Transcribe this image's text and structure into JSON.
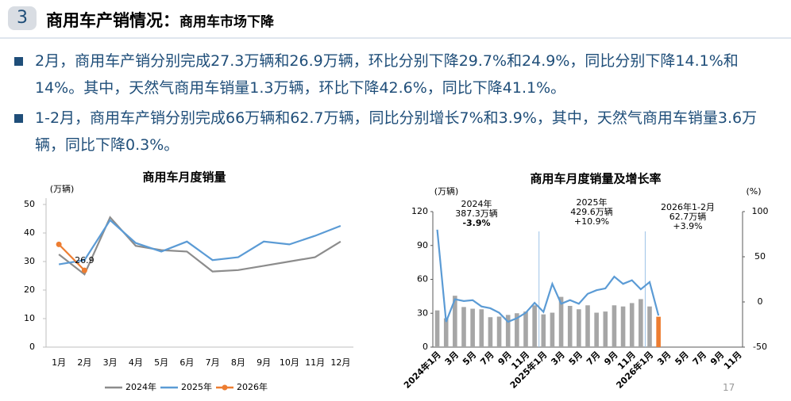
{
  "header": {
    "number": "3",
    "title": "商用车产销情况：",
    "subtitle": "商用车市场下降"
  },
  "bullets": [
    "2月，商用车产销分别完成27.3万辆和26.9万辆，环比分别下降29.7%和24.9%，同比分别下降14.1%和14%。其中，天然气商用车销量1.3万辆，环比下降42.6%，同比下降41.1%。",
    "1-2月，商用车产销分别完成66万辆和62.7万辆，同比分别增长7%和3.9%，其中，天然气商用车销量3.6万辆，同比下降0.3%。"
  ],
  "page_number": "17",
  "chart_data": [
    {
      "type": "line",
      "title": "商用车月度销量",
      "y_label": "(万辆)",
      "categories": [
        "1月",
        "2月",
        "3月",
        "4月",
        "5月",
        "6月",
        "7月",
        "8月",
        "9月",
        "10月",
        "11月",
        "12月"
      ],
      "ylim": [
        0,
        50
      ],
      "yticks": [
        0,
        10,
        20,
        30,
        40,
        50
      ],
      "grid": false,
      "legend": "bottom",
      "series": [
        {
          "name": "2024年",
          "color": "#8c8c8c",
          "values": [
            32.5,
            25.5,
            45.5,
            35.5,
            34,
            33.5,
            26.5,
            27,
            28.5,
            30,
            31.5,
            37
          ]
        },
        {
          "name": "2025年",
          "color": "#5b9bd5",
          "values": [
            29,
            30.5,
            44.5,
            36.5,
            33.5,
            37,
            30.5,
            31.5,
            37,
            36,
            39,
            42.5
          ]
        },
        {
          "name": "2026年",
          "color": "#ed7d31",
          "marker": true,
          "values": [
            36,
            26.9,
            null,
            null,
            null,
            null,
            null,
            null,
            null,
            null,
            null,
            null
          ],
          "value_labels": [
            null,
            "26.9",
            null,
            null,
            null,
            null,
            null,
            null,
            null,
            null,
            null,
            null
          ]
        }
      ]
    },
    {
      "type": "combo",
      "title": "商用车月度销量及增长率",
      "y_label": "(万辆)",
      "y2_label": "(%)",
      "categories": [
        "2024年1月",
        null,
        "3月",
        null,
        "5月",
        null,
        "7月",
        null,
        "9月",
        null,
        "11月",
        null,
        "2025年1月",
        null,
        "3月",
        null,
        "5月",
        null,
        "7月",
        null,
        "9月",
        null,
        "11月",
        null,
        "2026年1月",
        null,
        "3月",
        null,
        "5月",
        null,
        "7月",
        null,
        "9月",
        null,
        "11月"
      ],
      "ylim": [
        0,
        120
      ],
      "yticks": [
        0,
        30,
        60,
        90,
        120
      ],
      "y2lim": [
        -50,
        100
      ],
      "y2ticks": [
        -50,
        0,
        50,
        100
      ],
      "series": [
        {
          "type": "bar",
          "color": "#a6a6a6",
          "values": [
            32.5,
            25.5,
            45.5,
            35.5,
            34,
            33.5,
            26.5,
            27,
            28.5,
            30,
            31.5,
            37,
            29,
            30.5,
            44.5,
            36.5,
            33.5,
            37,
            30.5,
            31.5,
            37,
            36,
            39,
            42.5,
            36,
            null,
            null,
            null,
            null,
            null,
            null,
            null,
            null,
            null,
            null
          ]
        },
        {
          "type": "bar",
          "color": "#ed7d31",
          "values": [
            null,
            null,
            null,
            null,
            null,
            null,
            null,
            null,
            null,
            null,
            null,
            null,
            null,
            null,
            null,
            null,
            null,
            null,
            null,
            null,
            null,
            null,
            null,
            null,
            null,
            26.9,
            null,
            null,
            null,
            null,
            null,
            null,
            null,
            null,
            null
          ]
        },
        {
          "type": "line",
          "axis": "y2",
          "color": "#5b9bd5",
          "values": [
            80,
            -22,
            3,
            1,
            2,
            -5,
            -7,
            -12,
            -22,
            -18,
            -12,
            -1,
            -11,
            20,
            -2,
            2,
            -2,
            9,
            13,
            15,
            28,
            20,
            24,
            14,
            22,
            -15,
            null,
            null,
            null,
            null,
            null,
            null,
            null,
            null,
            null
          ]
        }
      ],
      "annotations": [
        {
          "lines": [
            "2024年",
            "387.3万辆",
            "-3.9%"
          ]
        },
        {
          "lines": [
            "2025年",
            "429.6万辆",
            "+10.9%"
          ]
        },
        {
          "lines": [
            "2026年1-2月",
            "62.7万辆",
            "+3.9%"
          ]
        }
      ]
    }
  ]
}
